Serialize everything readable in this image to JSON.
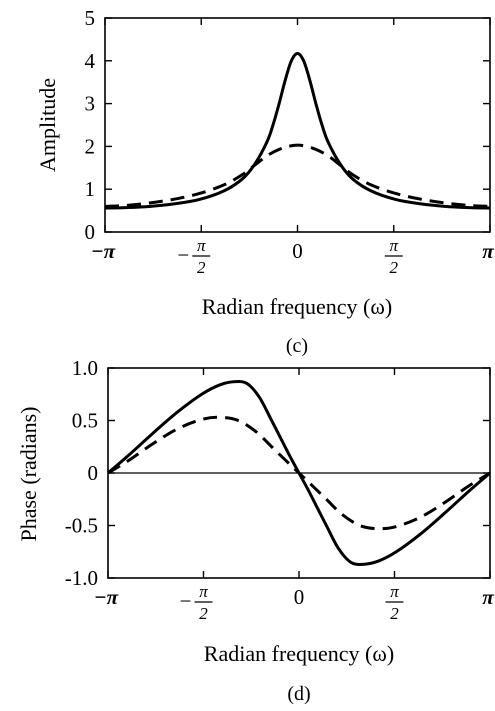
{
  "chart_data": [
    {
      "panel": "(c)",
      "type": "line",
      "xlabel": "Radian frequency (ω)",
      "ylabel": "Amplitude",
      "xlim": [
        -3.14159,
        3.14159
      ],
      "ylim": [
        0,
        5
      ],
      "xticks": [
        {
          "value": -3.14159,
          "label": "−π"
        },
        {
          "value": -1.5708,
          "label": "−π/2"
        },
        {
          "value": 0,
          "label": "0"
        },
        {
          "value": 1.5708,
          "label": "π/2"
        },
        {
          "value": 3.14159,
          "label": "π"
        }
      ],
      "yticks": [
        {
          "value": 0,
          "label": "0"
        },
        {
          "value": 1,
          "label": "1"
        },
        {
          "value": 2,
          "label": "2"
        },
        {
          "value": 3,
          "label": "3"
        },
        {
          "value": 4,
          "label": "4"
        },
        {
          "value": 5,
          "label": "5"
        }
      ],
      "grid": false,
      "legend": "none",
      "series": [
        {
          "style": "solid",
          "x": [
            -3.14159,
            -2.8,
            -2.4,
            -2.0,
            -1.6,
            -1.2,
            -0.9,
            -0.7,
            -0.5,
            -0.4,
            -0.3,
            -0.2,
            -0.1,
            0,
            0.1,
            0.2,
            0.3,
            0.4,
            0.5,
            0.7,
            0.9,
            1.2,
            1.6,
            2.0,
            2.4,
            2.8,
            3.14159
          ],
          "y": [
            0.56,
            0.57,
            0.6,
            0.66,
            0.76,
            0.96,
            1.24,
            1.58,
            2.1,
            2.5,
            3.0,
            3.55,
            4.0,
            4.17,
            4.0,
            3.55,
            3.0,
            2.5,
            2.1,
            1.58,
            1.24,
            0.96,
            0.76,
            0.66,
            0.6,
            0.57,
            0.56
          ]
        },
        {
          "style": "dashed",
          "x": [
            -3.14159,
            -2.8,
            -2.4,
            -2.0,
            -1.6,
            -1.2,
            -0.9,
            -0.7,
            -0.5,
            -0.3,
            -0.15,
            0,
            0.15,
            0.3,
            0.5,
            0.7,
            0.9,
            1.2,
            1.6,
            2.0,
            2.4,
            2.8,
            3.14159
          ],
          "y": [
            0.6,
            0.62,
            0.68,
            0.77,
            0.9,
            1.1,
            1.34,
            1.56,
            1.78,
            1.93,
            2.0,
            2.03,
            2.0,
            1.93,
            1.78,
            1.56,
            1.34,
            1.1,
            0.9,
            0.77,
            0.68,
            0.62,
            0.6
          ]
        }
      ]
    },
    {
      "panel": "(d)",
      "type": "line",
      "xlabel": "Radian frequency (ω)",
      "ylabel": "Phase (radians)",
      "xlim": [
        -3.14159,
        3.14159
      ],
      "ylim": [
        -1.0,
        1.0
      ],
      "xticks": [
        {
          "value": -3.14159,
          "label": "−π"
        },
        {
          "value": -1.5708,
          "label": "−π/2"
        },
        {
          "value": 0,
          "label": "0"
        },
        {
          "value": 1.5708,
          "label": "π/2"
        },
        {
          "value": 3.14159,
          "label": "π"
        }
      ],
      "yticks": [
        {
          "value": 1.0,
          "label": "1.0"
        },
        {
          "value": 0.5,
          "label": "0.5"
        },
        {
          "value": 0,
          "label": "0"
        },
        {
          "value": -0.5,
          "label": "-0.5"
        },
        {
          "value": -1.0,
          "label": "-1.0"
        }
      ],
      "zero_line": true,
      "grid": false,
      "legend": "none",
      "series": [
        {
          "style": "solid",
          "x": [
            -3.14159,
            -2.8,
            -2.4,
            -2.0,
            -1.6,
            -1.3,
            -1.05,
            -0.85,
            -0.65,
            -0.45,
            -0.3,
            -0.15,
            0,
            0.15,
            0.3,
            0.45,
            0.65,
            0.85,
            1.05,
            1.3,
            1.6,
            2.0,
            2.4,
            2.8,
            3.14159
          ],
          "y": [
            0,
            0.17,
            0.38,
            0.58,
            0.75,
            0.84,
            0.87,
            0.85,
            0.72,
            0.5,
            0.33,
            0.16,
            0,
            -0.16,
            -0.33,
            -0.5,
            -0.72,
            -0.85,
            -0.87,
            -0.84,
            -0.75,
            -0.58,
            -0.38,
            -0.17,
            0
          ]
        },
        {
          "style": "dashed",
          "x": [
            -3.14159,
            -2.8,
            -2.4,
            -2.0,
            -1.6,
            -1.3,
            -1.0,
            -0.7,
            -0.45,
            -0.2,
            0,
            0.2,
            0.45,
            0.7,
            1.0,
            1.3,
            1.6,
            2.0,
            2.4,
            2.8,
            3.14159
          ],
          "y": [
            0,
            0.12,
            0.28,
            0.42,
            0.51,
            0.53,
            0.5,
            0.39,
            0.25,
            0.11,
            0,
            -0.11,
            -0.25,
            -0.39,
            -0.5,
            -0.53,
            -0.51,
            -0.42,
            -0.28,
            -0.12,
            0
          ]
        }
      ]
    }
  ]
}
